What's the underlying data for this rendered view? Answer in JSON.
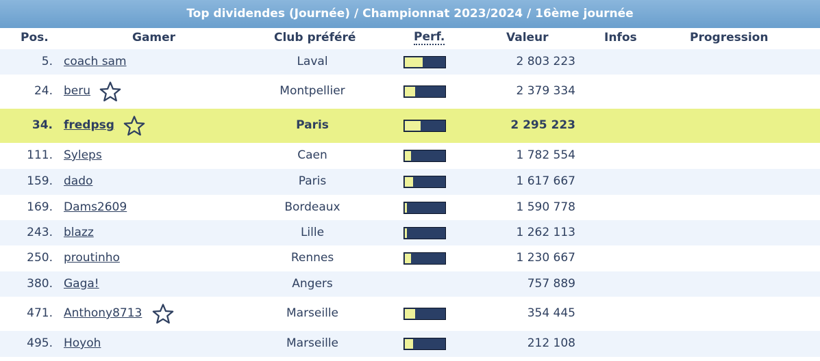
{
  "title": "Top dividendes (Journée) / Championnat 2023/2024 / 16ème journée",
  "headers": {
    "pos": "Pos.",
    "gamer": "Gamer",
    "club": "Club préféré",
    "perf": "Perf.",
    "valeur": "Valeur",
    "infos": "Infos",
    "progression": "Progression"
  },
  "rows": [
    {
      "pos": "5.",
      "gamer": "coach sam",
      "club": "Laval",
      "valeur": "2 803 223",
      "perf": 0.45,
      "star": false,
      "highlight": false
    },
    {
      "pos": "24.",
      "gamer": "beru",
      "club": "Montpellier",
      "valeur": "2 379 334",
      "perf": 0.25,
      "star": true,
      "highlight": false
    },
    {
      "pos": "34.",
      "gamer": "fredpsg",
      "club": "Paris",
      "valeur": "2 295 223",
      "perf": 0.4,
      "star": true,
      "highlight": true
    },
    {
      "pos": "111.",
      "gamer": "Syleps",
      "club": "Caen",
      "valeur": "1 782 554",
      "perf": 0.15,
      "star": false,
      "highlight": false
    },
    {
      "pos": "159.",
      "gamer": "dado",
      "club": "Paris",
      "valeur": "1 617 667",
      "perf": 0.2,
      "star": false,
      "highlight": false
    },
    {
      "pos": "169.",
      "gamer": "Dams2609",
      "club": "Bordeaux",
      "valeur": "1 590 778",
      "perf": 0.05,
      "star": false,
      "highlight": false
    },
    {
      "pos": "243.",
      "gamer": "blazz",
      "club": "Lille",
      "valeur": "1 262 113",
      "perf": 0.05,
      "star": false,
      "highlight": false
    },
    {
      "pos": "250.",
      "gamer": "proutinho",
      "club": "Rennes",
      "valeur": "1 230 667",
      "perf": 0.15,
      "star": false,
      "highlight": false
    },
    {
      "pos": "380.",
      "gamer": "Gaga!",
      "club": "Angers",
      "valeur": "757 889",
      "perf": null,
      "star": false,
      "highlight": false
    },
    {
      "pos": "471.",
      "gamer": "Anthony8713",
      "club": "Marseille",
      "valeur": "354 445",
      "perf": 0.25,
      "star": true,
      "highlight": false
    },
    {
      "pos": "495.",
      "gamer": "Hoyoh",
      "club": "Marseille",
      "valeur": "212 108",
      "perf": 0.2,
      "star": false,
      "highlight": false
    }
  ],
  "colors": {
    "title_bg": "#7aaad5",
    "row_alt": "#eef4fc",
    "highlight": "#eaf28a",
    "bar_bg": "#2a3f66",
    "bar_fill": "#eef29a"
  },
  "icons": {
    "favorite": "star-outline-icon"
  }
}
